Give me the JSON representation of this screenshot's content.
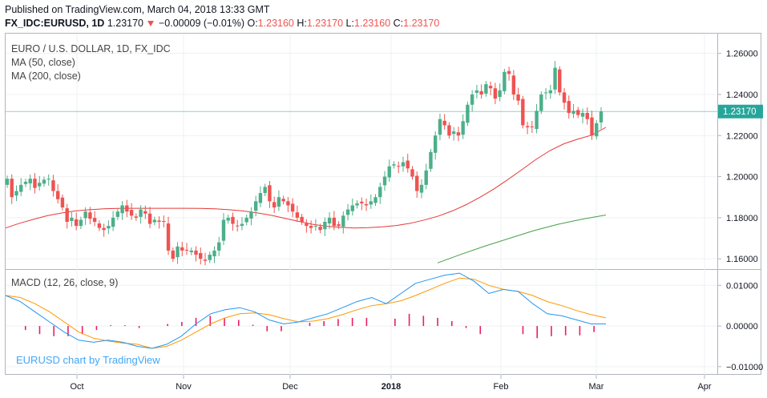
{
  "header": {
    "published": "Published on TradingView.com, March 04, 2018 13:33 GMT",
    "symbol": "FX_IDC:EURUSD, 1D",
    "last": "1.23170",
    "change": "−0.00009 (−0.01%)",
    "o_label": "O:",
    "o_value": "1.23160",
    "h_label": "H:",
    "h_value": "1.23170",
    "l_label": "L:",
    "l_value": "1.23160",
    "c_label": "C:",
    "c_value": "1.23170",
    "arrow_icon": "down-triangle-icon"
  },
  "legend": {
    "title": "EURO / U.S. DOLLAR, 1D, FX_IDC",
    "ma50": "MA (50, close)",
    "ma200": "MA (200, close)",
    "macd": "MACD (12, 26, close, 9)",
    "watermark": "EURUSD chart by TradingView"
  },
  "colors": {
    "up": "#4caf8a",
    "down": "#ef5350",
    "ma50": "#e53935",
    "ma200": "#43a047",
    "macd": "#2196f3",
    "signal": "#ff9800",
    "hist": "#e91e63",
    "price_tag": "#26a69a"
  },
  "chart_data": [
    {
      "type": "candlestick",
      "title": "EURO / U.S. DOLLAR, 1D, FX_IDC",
      "ylim": [
        1.155,
        1.27
      ],
      "y_ticks": [
        "1.16000",
        "1.18000",
        "1.20000",
        "1.22000",
        "1.24000",
        "1.26000"
      ],
      "x_ticks": [
        "Oct",
        "Nov",
        "Dec",
        "2018",
        "Feb",
        "Mar",
        "Apr"
      ],
      "last_price_label": "1.23170",
      "last_price": 1.2317,
      "closes": [
        1.199,
        1.19,
        1.193,
        1.196,
        1.1975,
        1.199,
        1.1945,
        1.197,
        1.1985,
        1.199,
        1.193,
        1.189,
        1.185,
        1.178,
        1.18,
        1.176,
        1.179,
        1.183,
        1.1795,
        1.178,
        1.175,
        1.174,
        1.176,
        1.18,
        1.183,
        1.186,
        1.183,
        1.181,
        1.18,
        1.184,
        1.182,
        1.177,
        1.179,
        1.178,
        1.178,
        1.164,
        1.16,
        1.166,
        1.164,
        1.164,
        1.164,
        1.162,
        1.16,
        1.159,
        1.162,
        1.164,
        1.168,
        1.179,
        1.18,
        1.177,
        1.176,
        1.177,
        1.18,
        1.183,
        1.188,
        1.192,
        1.195,
        1.188,
        1.185,
        1.19,
        1.188,
        1.186,
        1.183,
        1.18,
        1.178,
        1.176,
        1.175,
        1.176,
        1.174,
        1.178,
        1.18,
        1.176,
        1.176,
        1.181,
        1.184,
        1.186,
        1.187,
        1.187,
        1.186,
        1.188,
        1.19,
        1.195,
        1.2,
        1.205,
        1.206,
        1.205,
        1.207,
        1.204,
        1.2,
        1.193,
        1.196,
        1.203,
        1.212,
        1.22,
        1.228,
        1.225,
        1.22,
        1.222,
        1.22,
        1.227,
        1.235,
        1.24,
        1.242,
        1.24,
        1.245,
        1.243,
        1.238,
        1.242,
        1.251,
        1.25,
        1.24,
        1.237,
        1.225,
        1.224,
        1.224,
        1.232,
        1.24,
        1.241,
        1.242,
        1.253,
        1.241,
        1.236,
        1.231,
        1.232,
        1.23,
        1.231,
        1.228,
        1.22,
        1.226,
        1.2317
      ],
      "ma50": [
        1.175,
        1.1773,
        1.1792,
        1.181,
        1.1823,
        1.1833,
        1.1839,
        1.1843,
        1.1845,
        1.1846,
        1.1846,
        1.1846,
        1.1846,
        1.1846,
        1.1845,
        1.1843,
        1.1839,
        1.1833,
        1.1824,
        1.1812,
        1.1797,
        1.1782,
        1.1768,
        1.1758,
        1.1753,
        1.175,
        1.1752,
        1.1756,
        1.1762,
        1.1773,
        1.1789,
        1.1808,
        1.1833,
        1.1864,
        1.19,
        1.1941,
        1.1987,
        1.2035,
        1.2084,
        1.2127,
        1.216,
        1.2183,
        1.2202,
        1.224
      ],
      "ma200": [
        1.158,
        1.1623,
        1.1663,
        1.17,
        1.1737,
        1.1768,
        1.1793,
        1.1813
      ]
    },
    {
      "type": "line",
      "title": "MACD (12, 26, close, 9)",
      "ylim": [
        -0.012,
        0.014
      ],
      "y_ticks": [
        "0.01000",
        "0.00000",
        "−0.01000"
      ],
      "series": [
        {
          "name": "MACD",
          "values": [
            0.0075,
            0.006,
            0.0035,
            0.001,
            -0.0015,
            -0.0035,
            -0.004,
            -0.0035,
            -0.004,
            -0.005,
            -0.0055,
            -0.0045,
            -0.0025,
            0.0005,
            0.003,
            0.004,
            0.0045,
            0.0035,
            0.0015,
            0.0005,
            0.001,
            0.002,
            0.003,
            0.0045,
            0.006,
            0.007,
            0.0055,
            0.008,
            0.0105,
            0.0115,
            0.0125,
            0.013,
            0.011,
            0.008,
            0.009,
            0.0085,
            0.0055,
            0.003,
            0.0025,
            0.0015,
            0.0005,
            0.0005
          ]
        },
        {
          "name": "Signal",
          "values": [
            0.0075,
            0.007,
            0.0055,
            0.0035,
            0.001,
            -0.0015,
            -0.003,
            -0.0037,
            -0.0042,
            -0.0045,
            -0.0055,
            -0.005,
            -0.0035,
            -0.0015,
            0.0005,
            0.002,
            0.003,
            0.0032,
            0.0028,
            0.0018,
            0.001,
            0.0012,
            0.0018,
            0.0028,
            0.004,
            0.005,
            0.0055,
            0.0062,
            0.0075,
            0.009,
            0.0105,
            0.0118,
            0.0115,
            0.01,
            0.009,
            0.0085,
            0.0075,
            0.006,
            0.005,
            0.0038,
            0.0028,
            0.002
          ]
        }
      ],
      "histogram": [
        0.0,
        -0.001,
        -0.002,
        -0.0025,
        -0.0025,
        -0.002,
        -0.001,
        0.0002,
        0.0002,
        -0.0005,
        0.0,
        0.0005,
        0.001,
        0.002,
        0.0025,
        0.002,
        0.0015,
        0.0003,
        -0.0013,
        -0.0013,
        0.0,
        0.0008,
        0.0012,
        0.0017,
        0.002,
        0.002,
        0.0,
        0.0018,
        0.003,
        0.0025,
        0.002,
        0.0012,
        -0.0005,
        -0.002,
        0.0,
        0.0,
        -0.002,
        -0.003,
        -0.0025,
        -0.0023,
        -0.0023,
        -0.0015
      ]
    }
  ]
}
